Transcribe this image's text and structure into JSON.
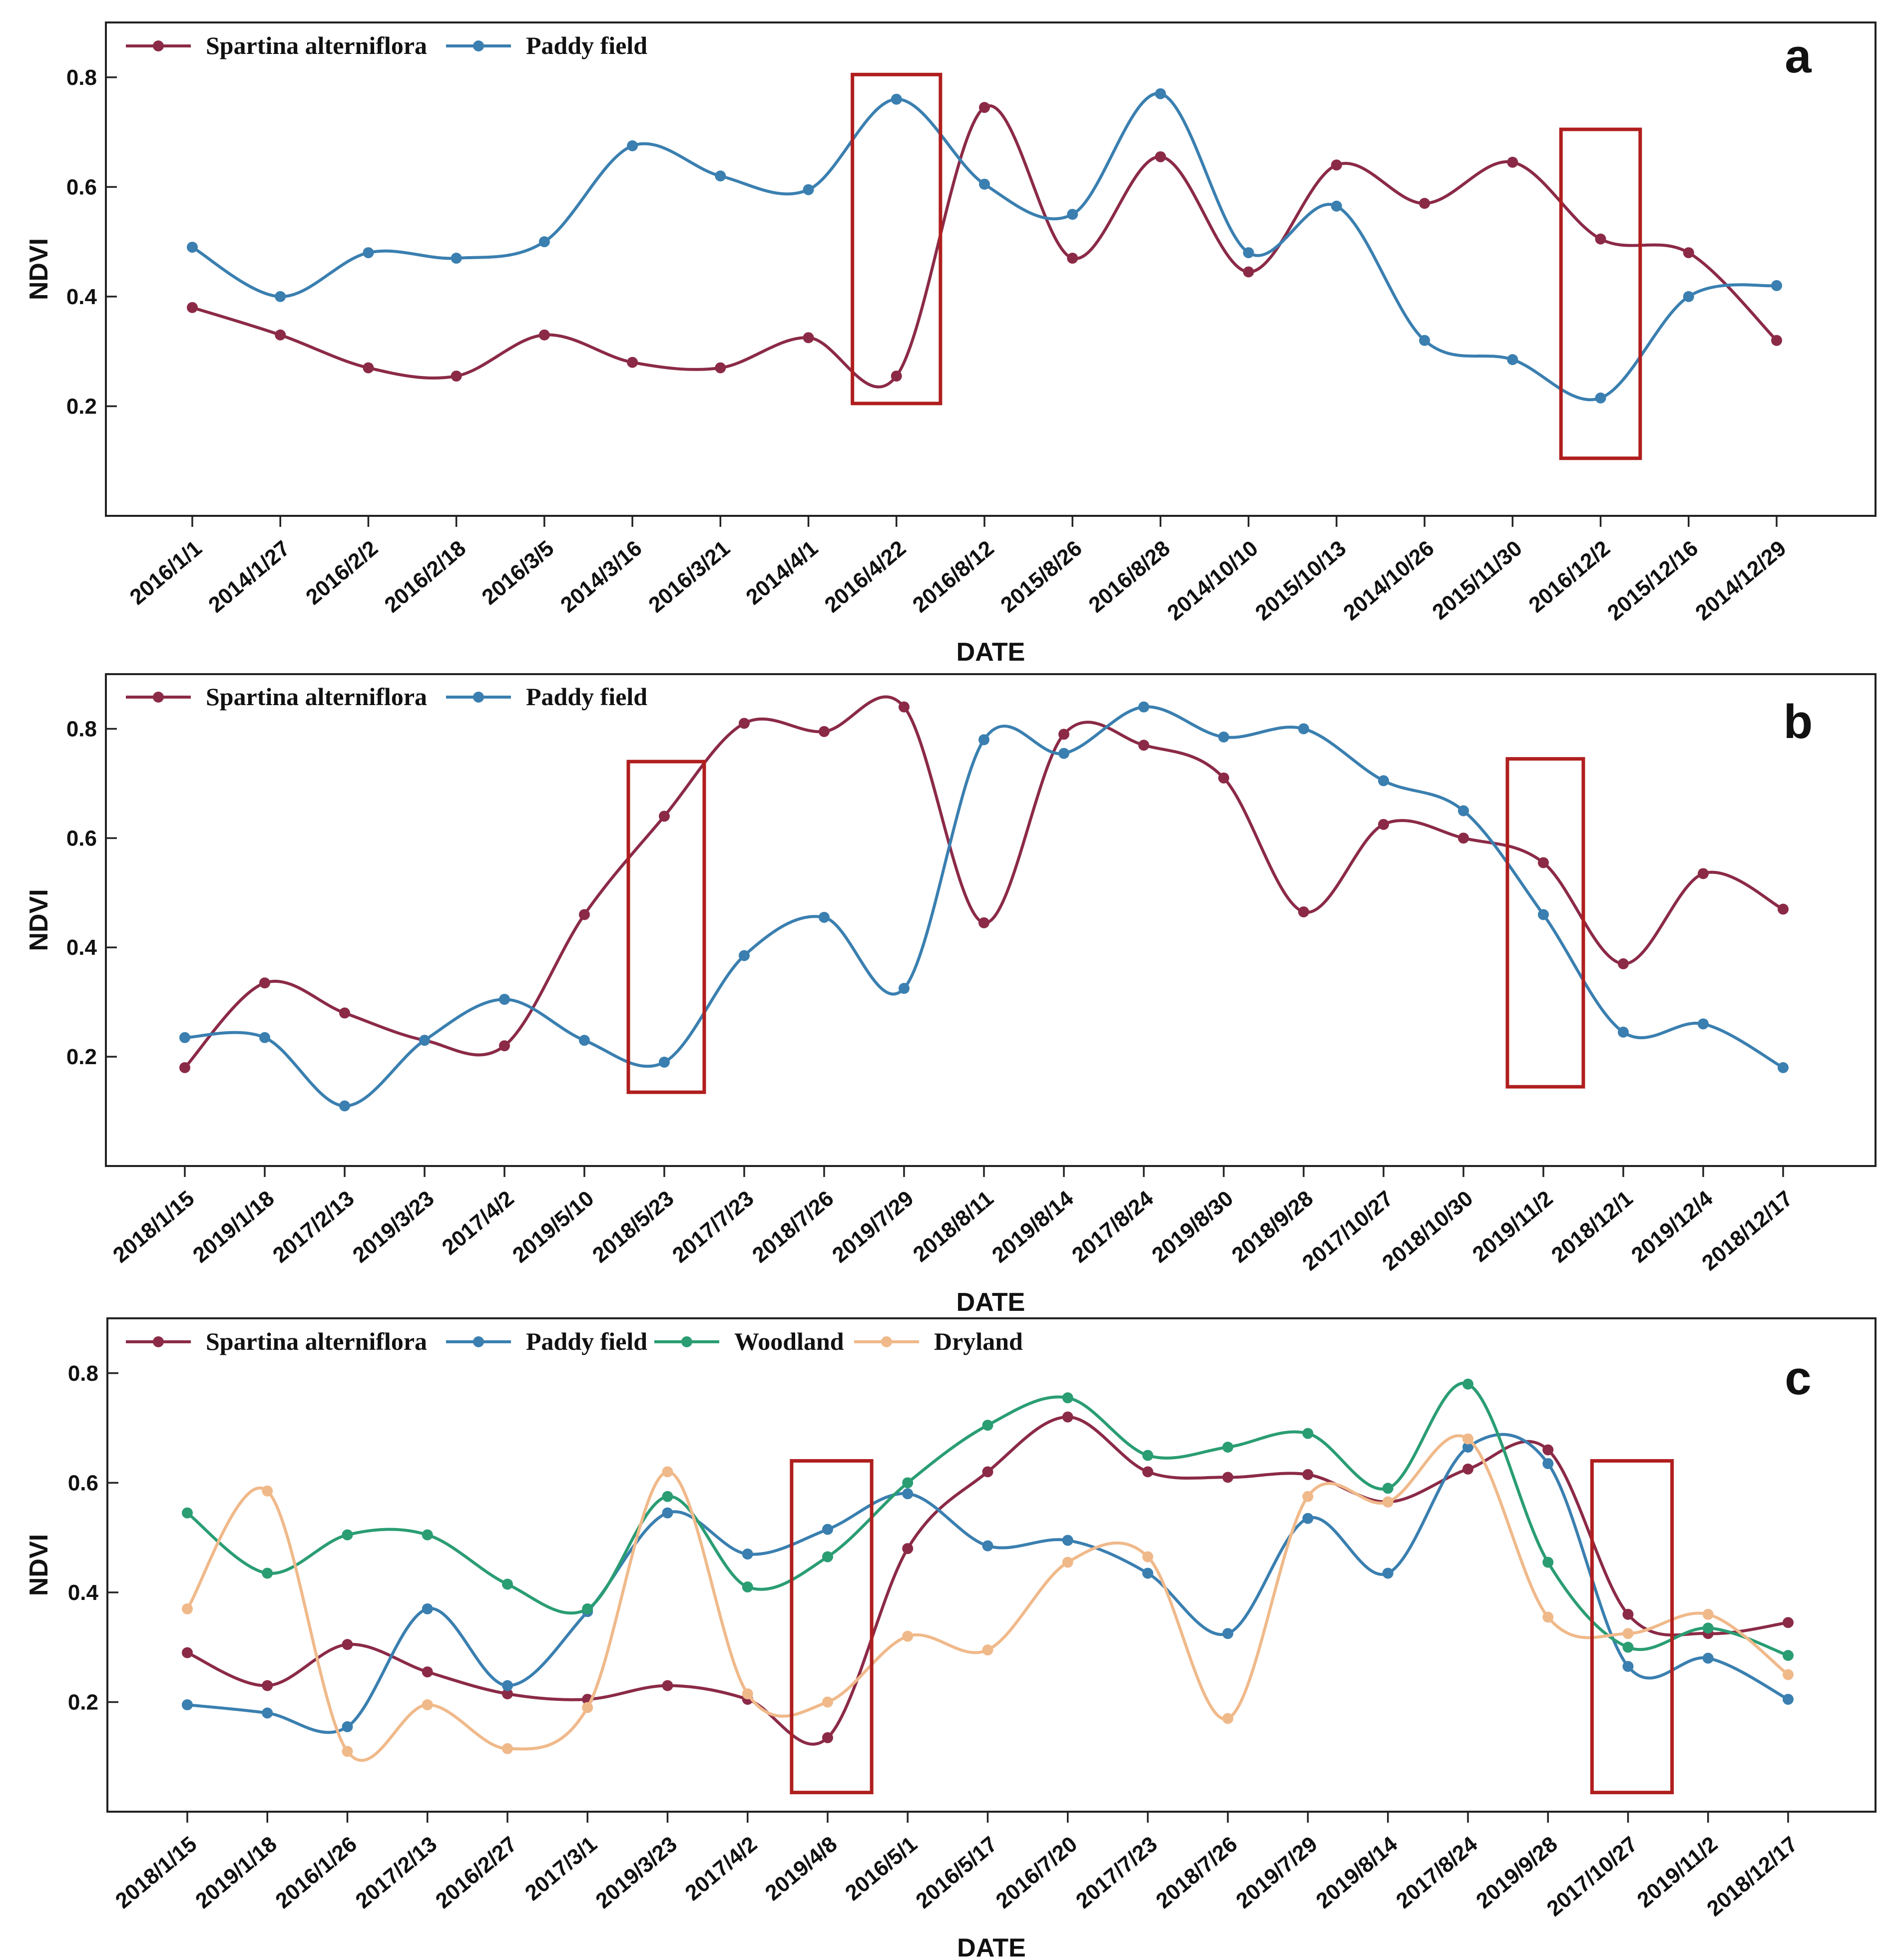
{
  "chart_data": [
    {
      "type": "line",
      "panel_label": "a",
      "xlabel": "DATE",
      "ylabel": "NDVI",
      "ylim": [
        0,
        0.9
      ],
      "yticks": [
        "0.2",
        "0.4",
        "0.6",
        "0.8"
      ],
      "categories": [
        "2016/1/1",
        "2014/1/27",
        "2016/2/2",
        "2016/2/18",
        "2016/3/5",
        "2014/3/16",
        "2016/3/21",
        "2014/4/1",
        "2016/4/22",
        "2016/8/12",
        "2015/8/26",
        "2016/8/28",
        "2014/10/10",
        "2015/10/13",
        "2014/10/26",
        "2015/11/30",
        "2016/12/2",
        "2015/12/16",
        "2014/12/29"
      ],
      "series": [
        {
          "name": "Spartina alterniflora",
          "color": "#8b2a47",
          "values": [
            0.38,
            0.33,
            0.27,
            0.255,
            0.33,
            0.28,
            0.27,
            0.325,
            0.255,
            0.745,
            0.47,
            0.655,
            0.445,
            0.64,
            0.57,
            0.645,
            0.505,
            0.48,
            0.32
          ]
        },
        {
          "name": "Paddy field",
          "color": "#3a7fb0",
          "values": [
            0.49,
            0.4,
            0.48,
            0.47,
            0.5,
            0.675,
            0.62,
            0.595,
            0.76,
            0.605,
            0.55,
            0.77,
            0.48,
            0.565,
            0.32,
            0.285,
            0.215,
            0.4,
            0.42
          ]
        }
      ],
      "highlights": [
        {
          "x_from": 7.5,
          "x_to": 8.5,
          "y_from": 0.205,
          "y_to": 0.805
        },
        {
          "x_from": 15.55,
          "x_to": 16.45,
          "y_from": 0.105,
          "y_to": 0.705
        }
      ]
    },
    {
      "type": "line",
      "panel_label": "b",
      "xlabel": "DATE",
      "ylabel": "NDVI",
      "ylim": [
        0,
        0.9
      ],
      "yticks": [
        "0.2",
        "0.4",
        "0.6",
        "0.8"
      ],
      "categories": [
        "2018/1/15",
        "2019/1/18",
        "2017/2/13",
        "2019/3/23",
        "2017/4/2",
        "2019/5/10",
        "2018/5/23",
        "2017/7/23",
        "2018/7/26",
        "2019/7/29",
        "2018/8/11",
        "2019/8/14",
        "2017/8/24",
        "2019/8/30",
        "2018/9/28",
        "2017/10/27",
        "2018/10/30",
        "2019/11/2",
        "2018/12/1",
        "2019/12/4",
        "2018/12/17"
      ],
      "series": [
        {
          "name": "Spartina alterniflora",
          "color": "#8b2a47",
          "values": [
            0.18,
            0.335,
            0.28,
            0.23,
            0.22,
            0.46,
            0.64,
            0.81,
            0.795,
            0.84,
            0.445,
            0.79,
            0.77,
            0.71,
            0.465,
            0.625,
            0.6,
            0.555,
            0.37,
            0.535,
            0.47
          ]
        },
        {
          "name": "Paddy field",
          "color": "#3a7fb0",
          "values": [
            0.235,
            0.235,
            0.11,
            0.23,
            0.305,
            0.23,
            0.19,
            0.385,
            0.455,
            0.325,
            0.78,
            0.755,
            0.84,
            0.785,
            0.8,
            0.705,
            0.65,
            0.46,
            0.245,
            0.26,
            0.18
          ]
        }
      ],
      "highlights": [
        {
          "x_from": 5.55,
          "x_to": 6.5,
          "y_from": 0.135,
          "y_to": 0.74
        },
        {
          "x_from": 16.55,
          "x_to": 17.5,
          "y_from": 0.145,
          "y_to": 0.745
        }
      ]
    },
    {
      "type": "line",
      "panel_label": "c",
      "xlabel": "DATE",
      "ylabel": "NDVI",
      "ylim": [
        0,
        0.9
      ],
      "yticks": [
        "0.2",
        "0.4",
        "0.6",
        "0.8"
      ],
      "categories": [
        "2018/1/15",
        "2019/1/18",
        "2016/1/26",
        "2017/2/13",
        "2016/2/27",
        "2017/3/1",
        "2019/3/23",
        "2017/4/2",
        "2019/4/8",
        "2016/5/1",
        "2016/5/17",
        "2016/7/20",
        "2017/7/23",
        "2018/7/26",
        "2019/7/29",
        "2019/8/14",
        "2017/8/24",
        "2019/9/28",
        "2017/10/27",
        "2019/11/2",
        "2018/12/17"
      ],
      "series": [
        {
          "name": "Spartina alterniflora",
          "color": "#8b2a47",
          "values": [
            0.29,
            0.23,
            0.305,
            0.255,
            0.215,
            0.205,
            0.23,
            0.205,
            0.135,
            0.48,
            0.62,
            0.72,
            0.62,
            0.61,
            0.615,
            0.565,
            0.625,
            0.66,
            0.36,
            0.325,
            0.345
          ]
        },
        {
          "name": "Paddy field",
          "color": "#3a7fb0",
          "values": [
            0.195,
            0.18,
            0.155,
            0.37,
            0.23,
            0.365,
            0.545,
            0.47,
            0.515,
            0.58,
            0.485,
            0.495,
            0.435,
            0.325,
            0.535,
            0.435,
            0.665,
            0.635,
            0.265,
            0.28,
            0.205
          ]
        },
        {
          "name": "Woodland",
          "color": "#2a9d73",
          "values": [
            0.545,
            0.435,
            0.505,
            0.505,
            0.415,
            0.37,
            0.575,
            0.41,
            0.465,
            0.6,
            0.705,
            0.755,
            0.65,
            0.665,
            0.69,
            0.59,
            0.78,
            0.455,
            0.3,
            0.335,
            0.285
          ]
        },
        {
          "name": "Dryland",
          "color": "#f0b98a",
          "values": [
            0.37,
            0.585,
            0.11,
            0.195,
            0.115,
            0.19,
            0.62,
            0.215,
            0.2,
            0.32,
            0.295,
            0.455,
            0.465,
            0.17,
            0.575,
            0.565,
            0.68,
            0.355,
            0.325,
            0.36,
            0.25
          ]
        }
      ],
      "highlights": [
        {
          "x_from": 7.55,
          "x_to": 8.55,
          "y_from": 0.035,
          "y_to": 0.64
        },
        {
          "x_from": 17.55,
          "x_to": 18.55,
          "y_from": 0.035,
          "y_to": 0.64
        }
      ]
    }
  ]
}
